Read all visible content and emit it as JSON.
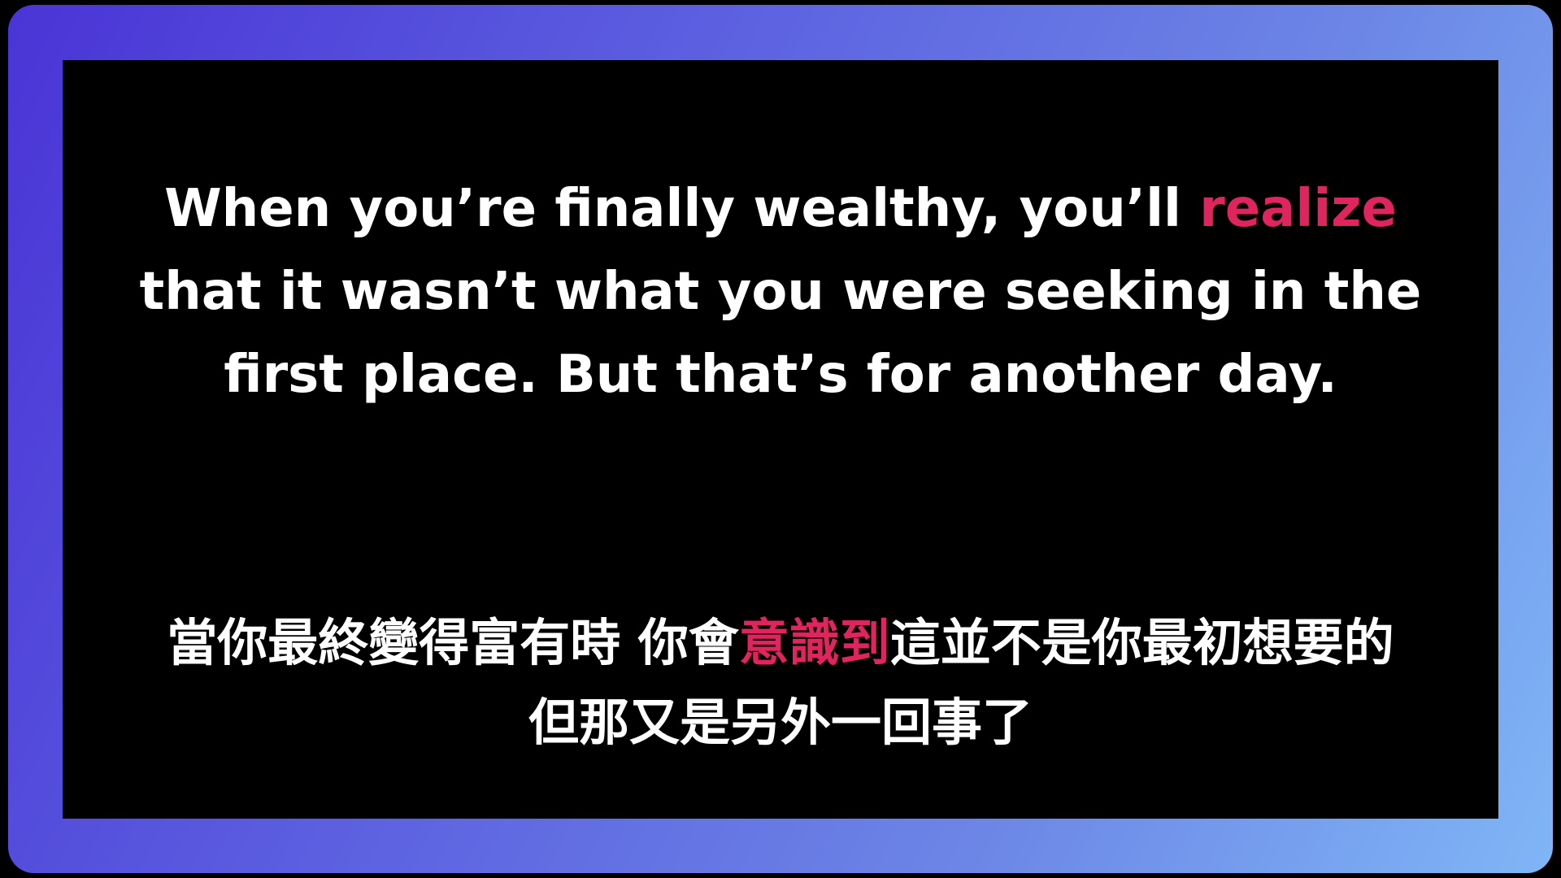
{
  "colors": {
    "accent": "#e0245e",
    "text": "#ffffff",
    "panel": "#000000",
    "frame_gradient": [
      "#4a34d6",
      "#5b5ee0",
      "#6c86e6",
      "#7fb6f6"
    ]
  },
  "english": {
    "line1_before": "When you’re finally wealthy, you’ll ",
    "line1_highlight": "realize",
    "line2": "that it wasn’t what you were seeking in the",
    "line3": "first place. But that’s for another day."
  },
  "chinese": {
    "line1_before": "當你最終變得富有時 你會",
    "line1_highlight": "意識到",
    "line1_after": "這並不是你最初想要的",
    "line2": "但那又是另外一回事了"
  }
}
